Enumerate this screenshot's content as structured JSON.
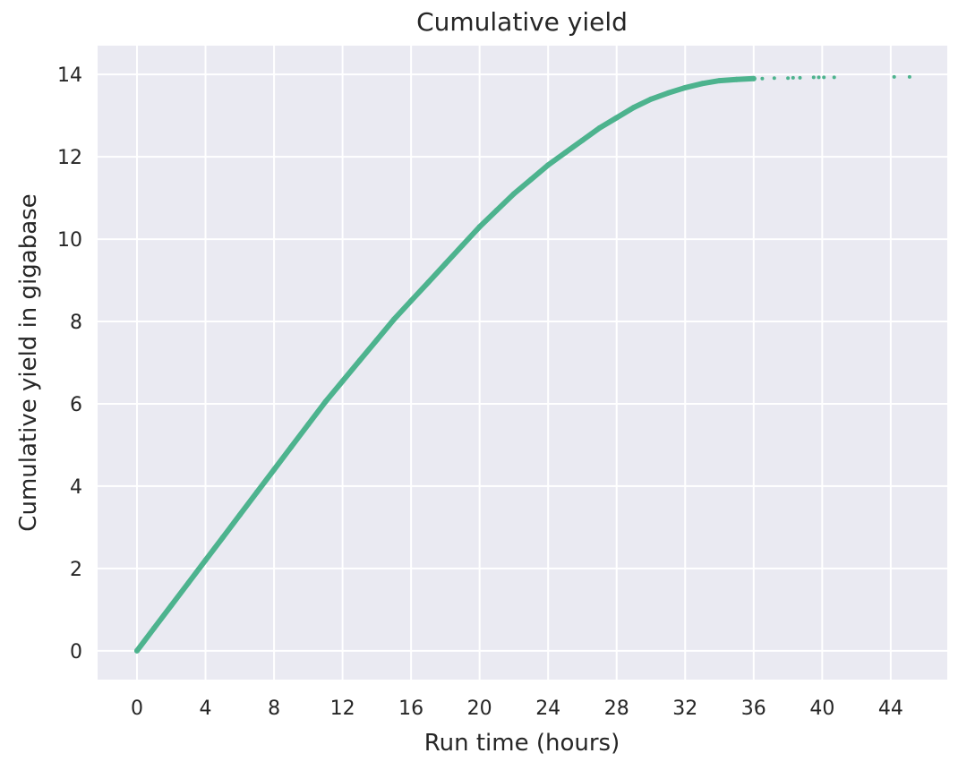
{
  "chart_data": {
    "type": "scatter",
    "title": "Cumulative yield",
    "xlabel": "Run time (hours)",
    "ylabel": "Cumulative yield in gigabase",
    "xlim": [
      -2.3,
      47.3
    ],
    "ylim": [
      -0.7,
      14.7
    ],
    "xticks": [
      0,
      4,
      8,
      12,
      16,
      20,
      24,
      28,
      32,
      36,
      40,
      44
    ],
    "yticks": [
      0,
      2,
      4,
      6,
      8,
      10,
      12,
      14
    ],
    "grid": true,
    "background_color": "#eaeaf2",
    "grid_color": "#ffffff",
    "series_color": "#4db38e",
    "series": [
      {
        "x": [
          0,
          1,
          2,
          3,
          4,
          5,
          6,
          7,
          8,
          9,
          10,
          11,
          12,
          13,
          14,
          15,
          16,
          17,
          18,
          19,
          20,
          21,
          22,
          23,
          24,
          25,
          26,
          27,
          28,
          29,
          30,
          31,
          32,
          33,
          34,
          35,
          36
        ],
        "y": [
          0,
          0.55,
          1.1,
          1.65,
          2.2,
          2.75,
          3.3,
          3.85,
          4.4,
          4.95,
          5.5,
          6.05,
          6.55,
          7.05,
          7.55,
          8.05,
          8.5,
          8.95,
          9.4,
          9.85,
          10.3,
          10.7,
          11.1,
          11.45,
          11.8,
          12.1,
          12.4,
          12.7,
          12.95,
          13.2,
          13.4,
          13.55,
          13.68,
          13.78,
          13.85,
          13.88,
          13.9
        ]
      },
      {
        "x": [
          36.5,
          37.2,
          38.0,
          38.3,
          38.7,
          39.5,
          39.8,
          40.1,
          40.7,
          44.2,
          45.1
        ],
        "y": [
          13.9,
          13.91,
          13.91,
          13.92,
          13.92,
          13.93,
          13.93,
          13.93,
          13.93,
          13.94,
          13.94
        ]
      }
    ]
  }
}
